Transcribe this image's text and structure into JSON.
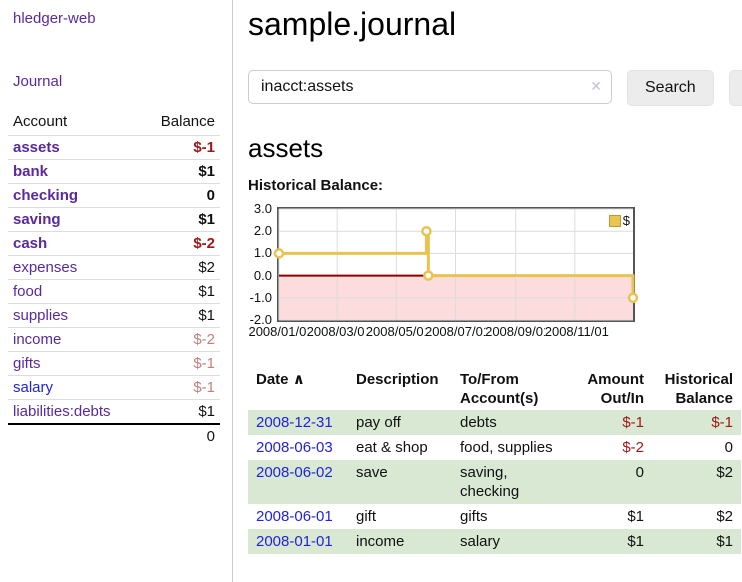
{
  "app": {
    "brand": "hledger-web"
  },
  "sidebar": {
    "journal_label": "Journal",
    "headers": {
      "account": "Account",
      "balance": "Balance"
    },
    "accounts": [
      {
        "name": "assets",
        "balance": "$-1"
      },
      {
        "name": "bank",
        "balance": "$1"
      },
      {
        "name": "checking",
        "balance": "0"
      },
      {
        "name": "saving",
        "balance": "$1"
      },
      {
        "name": "cash",
        "balance": "$-2"
      },
      {
        "name": "expenses",
        "balance": "$2"
      },
      {
        "name": "food",
        "balance": "$1"
      },
      {
        "name": "supplies",
        "balance": "$1"
      },
      {
        "name": "income",
        "balance": "$-2"
      },
      {
        "name": "gifts",
        "balance": "$-1"
      },
      {
        "name": "salary",
        "balance": "$-1"
      },
      {
        "name": "liabilities:debts",
        "balance": "$1"
      }
    ],
    "total": "0"
  },
  "main": {
    "title": "sample.journal",
    "search": {
      "value": "inacct:assets",
      "button_label": "Search",
      "help_label": "?"
    },
    "account_heading": "assets",
    "chart_label": "Historical Balance:"
  },
  "icons": {
    "clear_search": "✕",
    "sort_ascending": "∧"
  },
  "chart_data": {
    "type": "line",
    "step": true,
    "title": "Historical Balance:",
    "series": [
      {
        "name": "$",
        "points": [
          [
            "2008-01-01",
            1
          ],
          [
            "2008-06-01",
            2
          ],
          [
            "2008-06-03",
            0
          ],
          [
            "2008-12-31",
            -1
          ]
        ]
      }
    ],
    "x_start": "2008-01-01",
    "x_end": "2008-12-31",
    "ylim": [
      -2,
      3
    ],
    "ytick_values": [
      3,
      2,
      1,
      0,
      -1,
      -2
    ],
    "ytick_labels": [
      "3.0",
      "2.0",
      "1.0",
      "0.0",
      "-1.0",
      "-2.0"
    ],
    "xtick_dates": [
      "2008-01-01",
      "2008-03-01",
      "2008-05-01",
      "2008-07-01",
      "2008-09-01",
      "2008-11-01"
    ],
    "xtick_labels": [
      "2008/01/01",
      "2008/03/01",
      "2008/05/01",
      "2008/07/01",
      "2008/09/01",
      "2008/11/01"
    ],
    "legend_position": "top-right",
    "grid": true,
    "colors": {
      "line": "#e8c44f",
      "marker_fill": "#ffffff",
      "negative_area": "#fcdcdc",
      "zero_line": "#8b0000",
      "gridline": "#dcdcdc",
      "plot_border": "#555555"
    }
  },
  "register": {
    "headers": {
      "date": "Date",
      "description": "Description",
      "account_line1": "To/From",
      "account_line2": "Account(s)",
      "amount_line1": "Amount",
      "amount_line2": "Out/In",
      "balance_line1": "Historical",
      "balance_line2": "Balance"
    },
    "rows": [
      {
        "date": "2008-12-31",
        "description": "pay off",
        "accounts": "debts",
        "amount": "$-1",
        "balance": "$-1"
      },
      {
        "date": "2008-06-03",
        "description": "eat & shop",
        "accounts": "food, supplies",
        "amount": "$-2",
        "balance": "0"
      },
      {
        "date": "2008-06-02",
        "description": "save",
        "accounts": "saving, checking",
        "amount": "0",
        "balance": "$2"
      },
      {
        "date": "2008-06-01",
        "description": "gift",
        "accounts": "gifts",
        "amount": "$1",
        "balance": "$2"
      },
      {
        "date": "2008-01-01",
        "description": "income",
        "accounts": "salary",
        "amount": "$1",
        "balance": "$1"
      }
    ]
  },
  "colors": {
    "link_purple": "#5a2a9d",
    "link_blue": "#2222dd",
    "negative_strong": "#a01818",
    "negative_soft": "#c1807f",
    "row_stripe_green": "#d8e8d3",
    "accent_gold": "#e8c44f"
  }
}
